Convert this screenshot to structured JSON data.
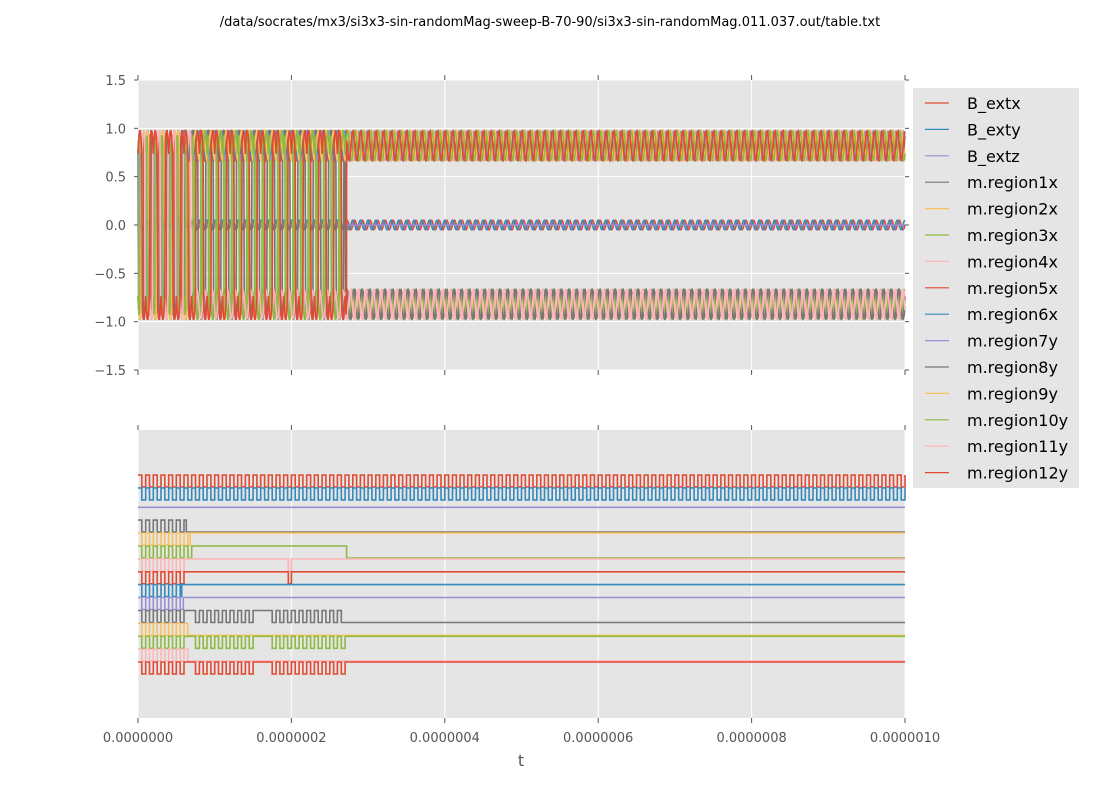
{
  "chart_data": [
    {
      "panel": "upper",
      "type": "line",
      "title": "/data/socrates/mx3/si3x3-sin-randomMag-sweep-B-70-90/si3x3-sin-randomMag.011.037.out/table.txt",
      "xlabel": "",
      "ylabel": "",
      "xlim": [
        0,
        1e-06
      ],
      "ylim": [
        -1.5,
        1.5
      ],
      "yticks": [
        1.5,
        1.0,
        0.5,
        0.0,
        -0.5,
        -1.0,
        -1.5
      ],
      "ytick_labels": [
        "1.5",
        "1.0",
        "0.5",
        "0.0",
        "−0.5",
        "−1.0",
        "−1.5"
      ],
      "xticks": [
        0,
        2e-07,
        4e-07,
        6e-07,
        8e-07,
        1e-06
      ],
      "grid": true,
      "description": "Oscillating magnetization/field components; B_ext oscillates near 0 with ~0.05 amplitude after t=0.6e-7, regions switch to saturated states near +0.8..1.0 or -0.7..-1.0 with sinusoidal modulation",
      "series": [
        {
          "name": "B_extx",
          "color": "#E24A33",
          "kind": "sin",
          "amp": 0.05,
          "offset": 0.0,
          "cycles": 100,
          "phase": 0.0
        },
        {
          "name": "B_exty",
          "color": "#348ABD",
          "kind": "sin",
          "amp": 0.05,
          "offset": 0.0,
          "cycles": 100,
          "phase": 1.57
        },
        {
          "name": "B_extz",
          "color": "#988ED5",
          "kind": "const",
          "offset": 0.0
        },
        {
          "name": "m.region1x",
          "color": "#777777",
          "kind": "switch",
          "switch_t": 6.3e-08,
          "final": -0.85,
          "amp": 0.15,
          "cycles": 100
        },
        {
          "name": "m.region2x",
          "color": "#FBC15E",
          "kind": "switch",
          "switch_t": 6.8e-08,
          "final": 0.85,
          "amp": 0.15,
          "cycles": 100
        },
        {
          "name": "m.region3x",
          "color": "#8EBA42",
          "kind": "switch",
          "switch_t": 2.72e-07,
          "final": -0.85,
          "amp": 0.15,
          "cycles": 100
        },
        {
          "name": "m.region4x",
          "color": "#FFB5B8",
          "kind": "switch",
          "switch_t": 6e-08,
          "final": -0.85,
          "amp": 0.15,
          "cycles": 100
        },
        {
          "name": "m.region5x",
          "color": "#E24A33",
          "kind": "switch",
          "switch_t": 6e-08,
          "final": 0.8,
          "amp": 0.15,
          "cycles": 100
        },
        {
          "name": "m.region6x",
          "color": "#348ABD",
          "kind": "switch",
          "switch_t": 5.7e-08,
          "final": 0.85,
          "amp": 0.15,
          "cycles": 100
        },
        {
          "name": "m.region7y",
          "color": "#988ED5",
          "kind": "switch",
          "switch_t": 5.9e-08,
          "final": 0.85,
          "amp": 0.15,
          "cycles": 100
        },
        {
          "name": "m.region8y",
          "color": "#777777",
          "kind": "switch",
          "switch_t": 2.7e-07,
          "final": -0.85,
          "amp": 0.15,
          "cycles": 100
        },
        {
          "name": "m.region9y",
          "color": "#FBC15E",
          "kind": "switch",
          "switch_t": 6.9e-08,
          "final": 0.85,
          "amp": 0.15,
          "cycles": 100
        },
        {
          "name": "m.region10y",
          "color": "#8EBA42",
          "kind": "switch",
          "switch_t": 2.7e-07,
          "final": 0.85,
          "amp": 0.15,
          "cycles": 100
        },
        {
          "name": "m.region11y",
          "color": "#FFB5B8",
          "kind": "switch",
          "switch_t": 6.9e-08,
          "final": -0.85,
          "amp": 0.15,
          "cycles": 100
        },
        {
          "name": "m.region12y",
          "color": "#E24A33",
          "kind": "switch",
          "switch_t": 2.72e-07,
          "final": 0.8,
          "amp": 0.15,
          "cycles": 100
        }
      ]
    },
    {
      "panel": "lower",
      "type": "line",
      "title": "",
      "xlabel": "t",
      "ylabel": "",
      "xlim": [
        0,
        1e-06
      ],
      "xticks": [
        0,
        2e-07,
        4e-07,
        6e-07,
        8e-07,
        1e-06
      ],
      "xtick_labels": [
        "0.0000000",
        "0.0000002",
        "0.0000004",
        "0.0000006",
        "0.0000008",
        "0.0000010"
      ],
      "yticks_visible": false,
      "grid": true,
      "description": "Digital (sign) traces of each series, stacked with vertical offsets; B_extx/B_exty toggle for full duration, regions toggle until switching time then settle to constant level",
      "series": [
        {
          "name": "B_extx",
          "color": "#E24A33",
          "lane": 0,
          "toggle_until": 1e-06,
          "cycles": 100,
          "final_high": true
        },
        {
          "name": "B_exty",
          "color": "#348ABD",
          "lane": 1,
          "toggle_until": 1e-06,
          "cycles": 100,
          "final_high": true
        },
        {
          "name": "B_extz",
          "color": "#988ED5",
          "lane": 2.5,
          "toggle_until": 0,
          "cycles": 0,
          "final_high": true
        },
        {
          "name": "m.region1x",
          "color": "#777777",
          "lane": 3.5,
          "toggle_until": 6.3e-08,
          "cycles": 100,
          "final_high": false
        },
        {
          "name": "m.region2x",
          "color": "#FBC15E",
          "lane": 4.5,
          "toggle_until": 6.8e-08,
          "cycles": 100,
          "final_high": true
        },
        {
          "name": "m.region3x",
          "color": "#8EBA42",
          "lane": 5.5,
          "toggle_until": 7e-08,
          "cycles": 100,
          "final_high": true,
          "late_switch_t": 2.72e-07
        },
        {
          "name": "m.region4x",
          "color": "#FFB5B8",
          "lane": 6.5,
          "toggle_until": 6e-08,
          "cycles": 100,
          "final_high": true,
          "glitch_t": 1.96e-07
        },
        {
          "name": "m.region5x",
          "color": "#E24A33",
          "lane": 7.5,
          "toggle_until": 6e-08,
          "cycles": 100,
          "final_high": true,
          "glitch_t": 1.96e-07
        },
        {
          "name": "m.region6x",
          "color": "#348ABD",
          "lane": 8.5,
          "toggle_until": 5.7e-08,
          "cycles": 100,
          "final_high": true
        },
        {
          "name": "m.region7y",
          "color": "#988ED5",
          "lane": 9.5,
          "toggle_until": 5.9e-08,
          "cycles": 100,
          "final_high": true
        },
        {
          "name": "m.region8y",
          "color": "#777777",
          "lane": 10.5,
          "toggle_until": 2.7e-07,
          "cycles": 100,
          "final_high": false,
          "gap_ranges": [
            [
              6e-08,
              7.5e-08
            ],
            [
              1.5e-07,
              1.68e-07
            ]
          ]
        },
        {
          "name": "m.region9y",
          "color": "#FBC15E",
          "lane": 11.5,
          "toggle_until": 6.9e-08,
          "cycles": 100,
          "final_high": false
        },
        {
          "name": "m.region10y",
          "color": "#8EBA42",
          "lane": 12.5,
          "toggle_until": 2.7e-07,
          "cycles": 100,
          "final_high": true,
          "gap_ranges": [
            [
              6e-08,
              7.5e-08
            ],
            [
              1.5e-07,
              1.68e-07
            ]
          ]
        },
        {
          "name": "m.region11y",
          "color": "#FFB5B8",
          "lane": 13.5,
          "toggle_until": 6.9e-08,
          "cycles": 100,
          "final_high": false
        },
        {
          "name": "m.region12y",
          "color": "#E24A33",
          "lane": 14.5,
          "toggle_until": 2.72e-07,
          "cycles": 100,
          "final_high": true,
          "gap_ranges": [
            [
              6e-08,
              7.5e-08
            ],
            [
              1.5e-07,
              1.68e-07
            ]
          ]
        }
      ]
    }
  ],
  "legend": {
    "placement": "right",
    "entries": [
      "B_extx",
      "B_exty",
      "B_extz",
      "m.region1x",
      "m.region2x",
      "m.region3x",
      "m.region4x",
      "m.region5x",
      "m.region6x",
      "m.region7y",
      "m.region8y",
      "m.region9y",
      "m.region10y",
      "m.region11y",
      "m.region12y"
    ]
  },
  "style": {
    "axes_bg": "#E5E5E5",
    "grid_color": "#FFFFFF",
    "tick_color": "#555555"
  }
}
